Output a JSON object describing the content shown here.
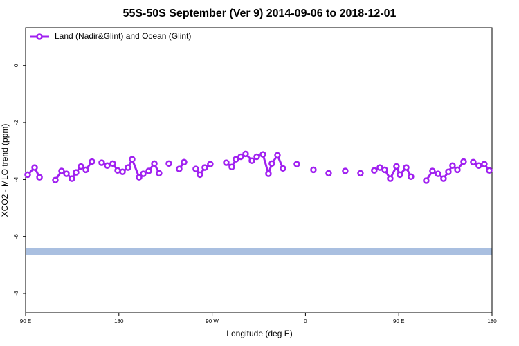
{
  "chart_data": {
    "type": "line",
    "title": "55S-50S September (Ver 9)   2014-09-06 to 2018-12-01",
    "xlabel": "Longitude (deg E)",
    "ylabel": "XCO2 - MLO trend (ppm)",
    "xlim": [
      90,
      540
    ],
    "ylim": [
      -8.68,
      1.33
    ],
    "xticks": [
      {
        "value": 90,
        "label": "90 E"
      },
      {
        "value": 180,
        "label": "180"
      },
      {
        "value": 270,
        "label": "90 W"
      },
      {
        "value": 360,
        "label": "0"
      },
      {
        "value": 450,
        "label": "90 E"
      },
      {
        "value": 540,
        "label": "180"
      }
    ],
    "yticks": [
      0,
      -2,
      -4,
      -6,
      -8
    ],
    "legend": "top-left",
    "band": {
      "ylim": [
        -6.42,
        -6.66
      ],
      "color": "#a9bfe0"
    },
    "series": [
      {
        "name": "Land (Nadir&Glint) and Ocean (Glint)",
        "color": "#a020f0",
        "x": [
          92.0,
          98.7,
          103.4,
          null,
          118.7,
          124.7,
          129.4,
          134.7,
          138.7,
          143.4,
          148.1,
          154.1,
          null,
          163.4,
          168.8,
          174.1,
          178.8,
          183.5,
          188.8,
          192.8,
          199.5,
          203.5,
          208.8,
          214.2,
          218.8,
          null,
          228.2,
          null,
          238.2,
          242.9,
          null,
          254.2,
          258.2,
          262.9,
          268.2,
          null,
          283.6,
          288.9,
          292.9,
          297.6,
          302.3,
          308.3,
          313.0,
          319.0,
          324.3,
          327.6,
          333.0,
          338.3,
          null,
          351.7,
          null,
          367.7,
          null,
          382.4,
          null,
          398.4,
          null,
          413.1,
          null,
          426.4,
          431.8,
          436.5,
          441.8,
          447.8,
          451.1,
          457.2,
          461.8,
          null,
          476.5,
          482.5,
          487.9,
          493.2,
          497.9,
          501.9,
          506.6,
          512.6,
          null,
          521.9,
          527.2,
          532.6,
          537.3
        ],
        "values": [
          -3.83,
          -3.58,
          -3.92,
          null,
          -4.02,
          -3.7,
          -3.8,
          -3.97,
          -3.75,
          -3.54,
          -3.66,
          -3.37,
          null,
          -3.41,
          -3.51,
          -3.44,
          -3.68,
          -3.73,
          -3.58,
          -3.29,
          -3.92,
          -3.8,
          -3.7,
          -3.44,
          -3.78,
          null,
          -3.44,
          null,
          -3.63,
          -3.39,
          null,
          -3.63,
          -3.83,
          -3.58,
          -3.46,
          null,
          -3.41,
          -3.56,
          -3.29,
          -3.2,
          -3.1,
          -3.34,
          -3.2,
          -3.12,
          -3.8,
          -3.44,
          -3.15,
          -3.61,
          null,
          -3.46,
          null,
          -3.66,
          null,
          -3.78,
          null,
          -3.7,
          null,
          -3.78,
          null,
          -3.68,
          -3.58,
          -3.66,
          -3.97,
          -3.54,
          -3.83,
          -3.58,
          -3.9,
          null,
          -4.04,
          -3.7,
          -3.8,
          -3.97,
          -3.73,
          -3.51,
          -3.66,
          -3.37,
          null,
          -3.39,
          -3.51,
          -3.46,
          -3.68
        ]
      }
    ]
  }
}
